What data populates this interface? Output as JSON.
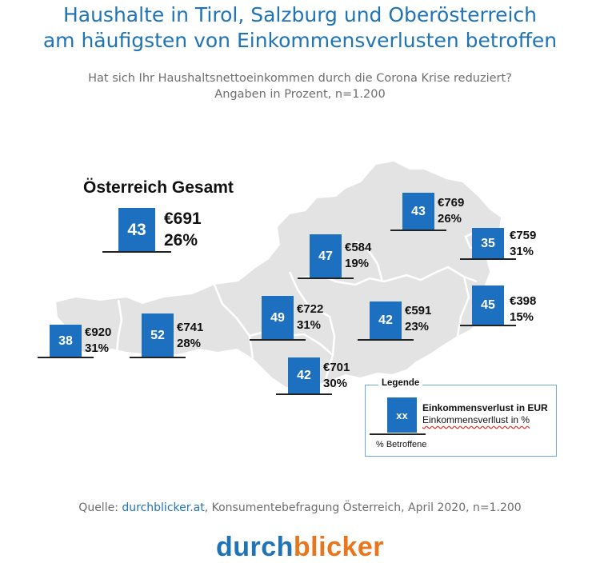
{
  "title": {
    "line1": "Haushalte in Tirol, Salzburg und Oberösterreich",
    "line2": "am häufigsten von Einkommensverlusten betroffen"
  },
  "subtitle": {
    "line1": "Hat sich Ihr Haushaltsnettoeinkommen durch die Corona Krise reduziert?",
    "line2": "Angaben in Prozent, n=1.200"
  },
  "colors": {
    "accent": "#1d6fc0",
    "map_fill": "#e3e3e3",
    "title": "#1f73b7",
    "logo_orange": "#e8761c"
  },
  "chart_data": {
    "type": "table",
    "title": "Haushalte in Tirol, Salzburg und Oberösterreich am häufigsten von Einkommensverlusten betroffen",
    "total": {
      "label": "Österreich Gesamt",
      "betroffene": "43",
      "eur": "€691",
      "pct": "26%"
    },
    "regions": [
      {
        "id": "vorarlberg",
        "betroffene": "38",
        "eur": "€920",
        "pct": "31%"
      },
      {
        "id": "tirol",
        "betroffene": "52",
        "eur": "€741",
        "pct": "28%"
      },
      {
        "id": "salzburg",
        "betroffene": "49",
        "eur": "€722",
        "pct": "31%"
      },
      {
        "id": "oberoesterreich",
        "betroffene": "47",
        "eur": "€584",
        "pct": "19%"
      },
      {
        "id": "niederoesterreich",
        "betroffene": "43",
        "eur": "€769",
        "pct": "26%"
      },
      {
        "id": "wien",
        "betroffene": "35",
        "eur": "€759",
        "pct": "31%"
      },
      {
        "id": "burgenland",
        "betroffene": "45",
        "eur": "€398",
        "pct": "15%"
      },
      {
        "id": "steiermark",
        "betroffene": "42",
        "eur": "€591",
        "pct": "23%"
      },
      {
        "id": "kaernten",
        "betroffene": "42",
        "eur": "€701",
        "pct": "30%"
      }
    ]
  },
  "legend": {
    "title": "Legende",
    "box": "xx",
    "line1": "Einkommensverlust in EUR",
    "line2": "Einkommensverllust in %",
    "line3": "% Betroffene"
  },
  "source": {
    "prefix": "Quelle: ",
    "link": "durchblicker.at",
    "suffix": ", Konsumentebefragung Österreich, April 2020, n=1.200"
  },
  "logo": {
    "part1": "durch",
    "part2": "blicker"
  }
}
